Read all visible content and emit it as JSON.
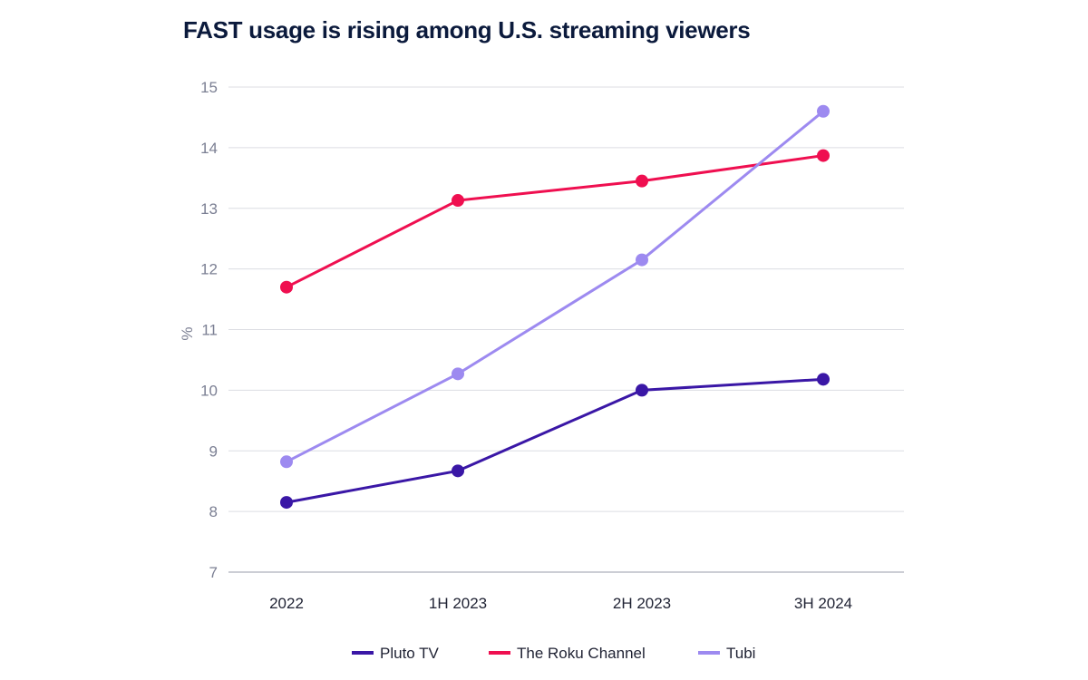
{
  "chart_data": {
    "type": "line",
    "title": "FAST usage is rising among U.S. streaming viewers",
    "xlabel": "",
    "ylabel": "%",
    "ylim": [
      7,
      15
    ],
    "yticks": [
      7,
      8,
      9,
      10,
      11,
      12,
      13,
      14,
      15
    ],
    "grid": true,
    "legend": "bottom",
    "categories": [
      "2022",
      "1H 2023",
      "2H 2023",
      "3H 2024"
    ],
    "series": [
      {
        "name": "Pluto TV",
        "color": "#3a17a6",
        "values": [
          8.15,
          8.67,
          10.0,
          10.18
        ]
      },
      {
        "name": "The Roku Channel",
        "color": "#ef0f50",
        "values": [
          11.7,
          13.13,
          13.45,
          13.87
        ]
      },
      {
        "name": "Tubi",
        "color": "#9d8af0",
        "values": [
          8.82,
          10.27,
          12.15,
          14.6
        ]
      }
    ]
  }
}
